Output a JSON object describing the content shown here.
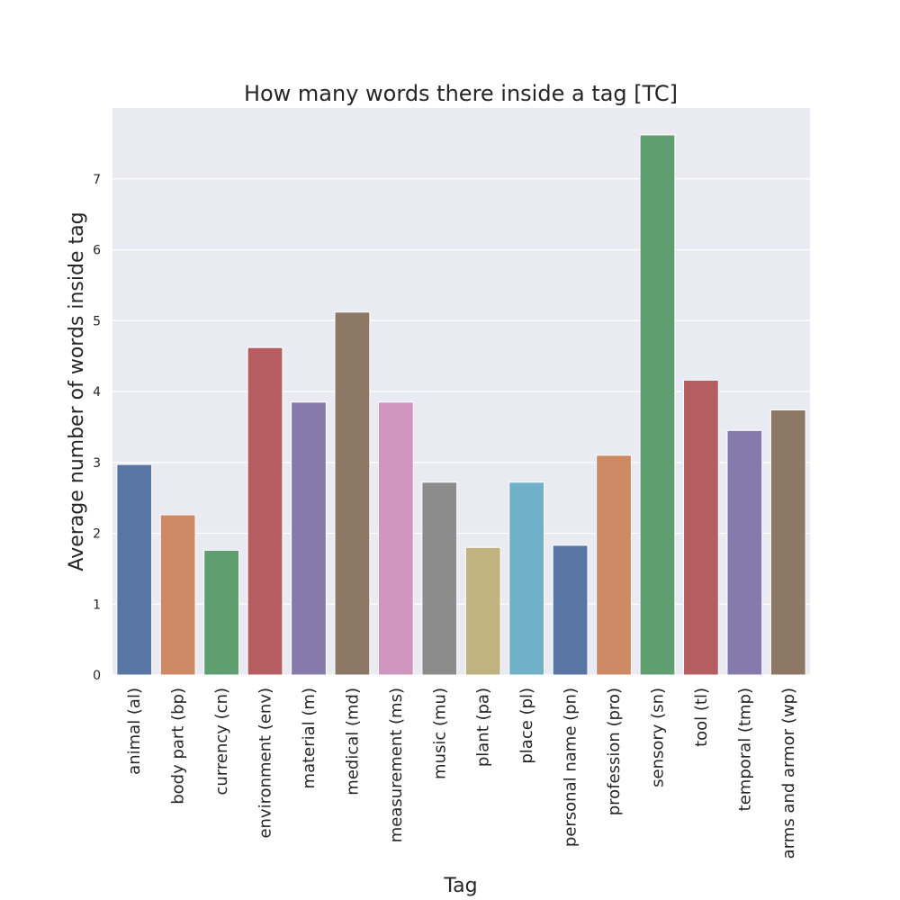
{
  "chart_data": {
    "type": "bar",
    "title": "How many words there inside a tag [TC]",
    "xlabel": "Tag",
    "ylabel": "Average number of words inside tag",
    "categories": [
      "animal (al)",
      "body part (bp)",
      "currency (cn)",
      "environment (env)",
      "material (m)",
      "medical (md)",
      "measurement (ms)",
      "music (mu)",
      "plant (pa)",
      "place (pl)",
      "personal name (pn)",
      "profession (pro)",
      "sensory (sn)",
      "tool (tl)",
      "temporal (tmp)",
      "arms and armor (wp)"
    ],
    "values": [
      2.97,
      2.26,
      1.76,
      4.62,
      3.85,
      5.12,
      3.85,
      2.72,
      1.8,
      2.72,
      1.83,
      3.1,
      7.62,
      4.16,
      3.45,
      3.74
    ],
    "colors": [
      "#5975a4",
      "#cc8963",
      "#5f9e6e",
      "#b55d60",
      "#857aab",
      "#8d7866",
      "#d095bf",
      "#8c8c8c",
      "#c1b37f",
      "#6fafc7",
      "#5975a4",
      "#cc8963",
      "#5f9e6e",
      "#b55d60",
      "#857aab",
      "#8d7866"
    ],
    "yticks": [
      0,
      1,
      2,
      3,
      4,
      5,
      6,
      7
    ],
    "ylim": [
      0,
      8.0
    ],
    "grid": true,
    "background": "#eaeaf2"
  }
}
